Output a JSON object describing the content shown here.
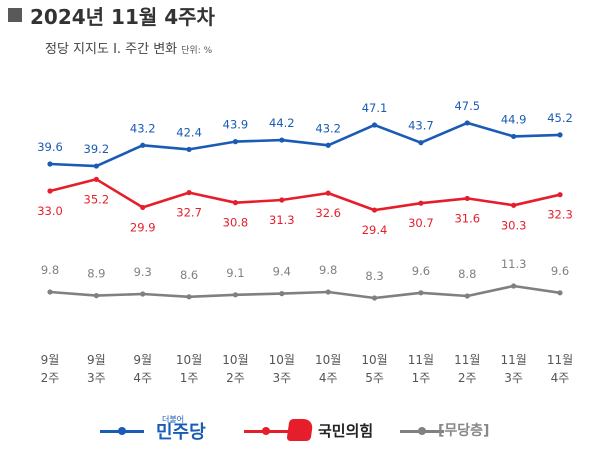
{
  "header": {
    "title": "2024년 11월 4주차",
    "subtitle": "정당 지지도 Ⅰ. 주간 변화",
    "unit": "단위: %"
  },
  "colors": {
    "minjoo": "#1a5bb5",
    "ppp": "#e61e2b",
    "none": "#808080"
  },
  "chart_data": {
    "type": "line",
    "categories": [
      "9월 2주",
      "9월 3주",
      "9월 4주",
      "10월 1주",
      "10월 2주",
      "10월 3주",
      "10월 4주",
      "10월 5주",
      "11월 1주",
      "11월 2주",
      "11월 3주",
      "11월 4주"
    ],
    "x_labels": [
      [
        "9월",
        "2주"
      ],
      [
        "9월",
        "3주"
      ],
      [
        "9월",
        "4주"
      ],
      [
        "10월",
        "1주"
      ],
      [
        "10월",
        "2주"
      ],
      [
        "10월",
        "3주"
      ],
      [
        "10월",
        "4주"
      ],
      [
        "10월",
        "5주"
      ],
      [
        "11월",
        "1주"
      ],
      [
        "11월",
        "2주"
      ],
      [
        "11월",
        "3주"
      ],
      [
        "11월",
        "4주"
      ]
    ],
    "series": [
      {
        "name": "더불어민주당",
        "values": [
          39.6,
          39.2,
          43.2,
          42.4,
          43.9,
          44.2,
          43.2,
          47.1,
          43.7,
          47.5,
          44.9,
          45.2
        ]
      },
      {
        "name": "국민의힘",
        "values": [
          33.0,
          35.2,
          29.9,
          32.7,
          30.8,
          31.3,
          32.6,
          29.4,
          30.7,
          31.6,
          30.3,
          32.3
        ]
      },
      {
        "name": "무당층",
        "values": [
          9.8,
          8.9,
          9.3,
          8.6,
          9.1,
          9.4,
          9.8,
          8.3,
          9.6,
          8.8,
          11.3,
          9.6
        ]
      }
    ],
    "title": "2024년 11월 4주차",
    "subtitle": "정당 지지도 Ⅰ. 주간 변화",
    "unit": "단위: %"
  },
  "legend": {
    "minjoo_main": "민주당",
    "minjoo_small": "더불어",
    "ppp": "국민의힘",
    "none": "[무당층]"
  }
}
